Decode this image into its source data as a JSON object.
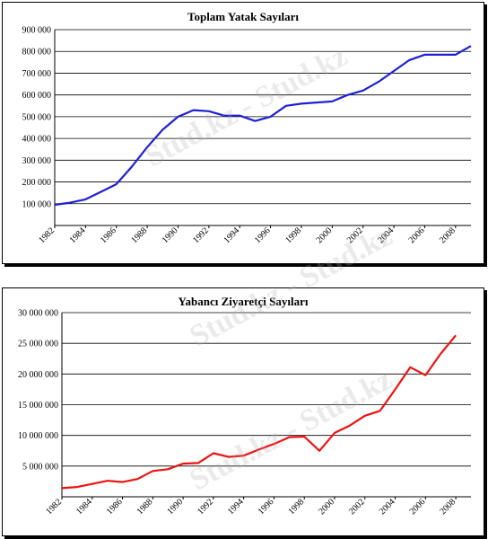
{
  "chart_data": [
    {
      "type": "line",
      "title": "Toplam Yatak Sayıları",
      "xlabel": "",
      "ylabel": "",
      "x": [
        1982,
        1983,
        1984,
        1985,
        1986,
        1987,
        1988,
        1989,
        1990,
        1991,
        1992,
        1993,
        1994,
        1995,
        1996,
        1997,
        1998,
        1999,
        2000,
        2001,
        2002,
        2003,
        2004,
        2005,
        2006,
        2007,
        2008,
        2009
      ],
      "xlim": [
        1982,
        2009
      ],
      "ylim": [
        0,
        900000
      ],
      "x_ticks": [
        "1982",
        "1984",
        "1986",
        "1988",
        "1990",
        "1992",
        "1994",
        "1996",
        "1998",
        "2000",
        "2002",
        "2004",
        "2006",
        "2008"
      ],
      "y_ticks": [
        "100 000",
        "200 000",
        "300 000",
        "400 000",
        "500 000",
        "600 000",
        "700 000",
        "800 000",
        "900 000"
      ],
      "y_tick_values": [
        100000,
        200000,
        300000,
        400000,
        500000,
        600000,
        700000,
        800000,
        900000
      ],
      "grid": true,
      "color": "#1f1fd6",
      "series": [
        {
          "values": [
            95000,
            105000,
            120000,
            155000,
            190000,
            270000,
            360000,
            440000,
            500000,
            530000,
            525000,
            505000,
            505000,
            480000,
            500000,
            550000,
            560000,
            565000,
            570000,
            600000,
            620000,
            660000,
            710000,
            760000,
            785000,
            785000,
            785000,
            825000
          ]
        }
      ]
    },
    {
      "type": "line",
      "title": "Yabancı Ziyaretçi Sayıları",
      "xlabel": "",
      "ylabel": "",
      "x": [
        1982,
        1983,
        1984,
        1985,
        1986,
        1987,
        1988,
        1989,
        1990,
        1991,
        1992,
        1993,
        1994,
        1995,
        1996,
        1997,
        1998,
        1999,
        2000,
        2001,
        2002,
        2003,
        2004,
        2005,
        2006,
        2007,
        2008,
        2009
      ],
      "xlim": [
        1982,
        2009
      ],
      "ylim": [
        0,
        30000000
      ],
      "x_ticks": [
        "1982",
        "1984",
        "1986",
        "1988",
        "1990",
        "1992",
        "1994",
        "1996",
        "1998",
        "2000",
        "2002",
        "2004",
        "2006",
        "2008"
      ],
      "y_ticks": [
        "5 000 000",
        "10 000 000",
        "15 000 000",
        "20 000 000",
        "25 000 000",
        "30 000 000"
      ],
      "y_tick_values": [
        5000000,
        10000000,
        15000000,
        20000000,
        25000000,
        30000000
      ],
      "grid": true,
      "color": "#ee1111",
      "series": [
        {
          "values": [
            1400000,
            1600000,
            2100000,
            2600000,
            2400000,
            2900000,
            4200000,
            4500000,
            5400000,
            5500000,
            7100000,
            6500000,
            6700000,
            7700000,
            8600000,
            9700000,
            9800000,
            7500000,
            10400000,
            11600000,
            13200000,
            14000000,
            17500000,
            21100000,
            19800000,
            23300000,
            26300000,
            null
          ]
        }
      ]
    }
  ],
  "watermark": {
    "text": "Stud.kz - Stud.kz"
  }
}
